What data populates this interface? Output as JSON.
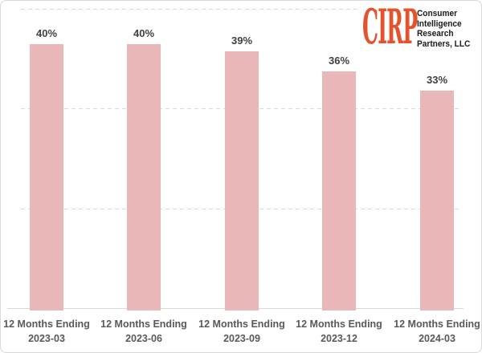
{
  "logo": {
    "brand": "CIRP",
    "brand_color": "#E5532C",
    "company_lines": [
      "Consumer",
      "Intelligence",
      "Research",
      "Partners, LLC"
    ],
    "text_color": "#1A1A1A"
  },
  "chart_data": {
    "type": "bar",
    "title": "",
    "categories": [
      {
        "line1": "12 Months Ending",
        "line2": "2023-03"
      },
      {
        "line1": "12 Months Ending",
        "line2": "2023-06"
      },
      {
        "line1": "12 Months Ending",
        "line2": "2023-09"
      },
      {
        "line1": "12 Months Ending",
        "line2": "2023-12"
      },
      {
        "line1": "12 Months Ending",
        "line2": "2024-03"
      }
    ],
    "values": [
      40,
      40,
      39,
      36,
      33
    ],
    "value_labels": [
      "40%",
      "40%",
      "39%",
      "36%",
      "33%"
    ],
    "unit": "%",
    "ylim": [
      0,
      45
    ],
    "gridline_values_pct": [
      15,
      30,
      45
    ],
    "grid_style": "dashed-horizontal",
    "legend": "none",
    "y_axis_labels": "none",
    "bar_color": "#E9B7B8",
    "grid_color": "#D9D9D9",
    "axis_line_color": "#D9D9D9",
    "value_label_color": "#404040",
    "category_label_color": "#595959"
  }
}
